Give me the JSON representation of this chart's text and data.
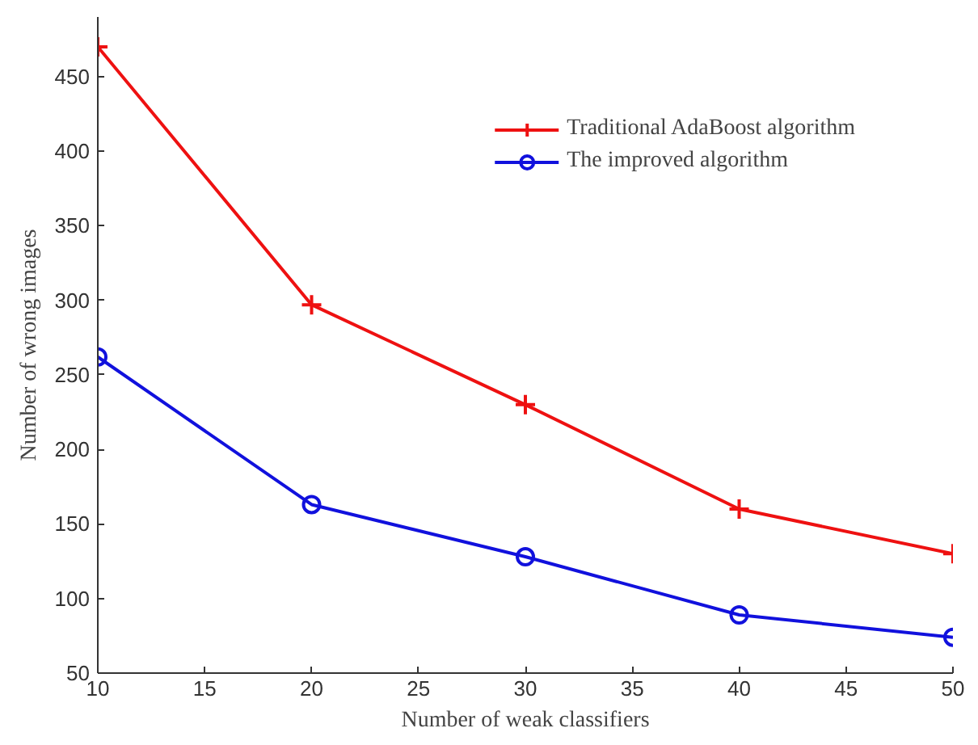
{
  "chart_data": {
    "type": "line",
    "xlabel": "Number of weak classifiers",
    "ylabel": "Number of wrong images",
    "x": [
      10,
      20,
      30,
      40,
      50
    ],
    "series": [
      {
        "name": "Traditional AdaBoost algorithm",
        "color": "#ee1111",
        "marker": "cross",
        "values": [
          470,
          297,
          230,
          160,
          130
        ]
      },
      {
        "name": "The improved algorithm",
        "color": "#1111dd",
        "marker": "circle",
        "values": [
          262,
          163,
          128,
          89,
          74
        ]
      }
    ],
    "xlim": [
      10,
      50
    ],
    "xticks": [
      10,
      15,
      20,
      25,
      30,
      35,
      40,
      45,
      50
    ],
    "ylim": [
      50,
      490
    ],
    "yticks": [
      50,
      100,
      150,
      200,
      250,
      300,
      350,
      400,
      450
    ],
    "grid": false,
    "legend": "top right",
    "line_style": "solid"
  }
}
